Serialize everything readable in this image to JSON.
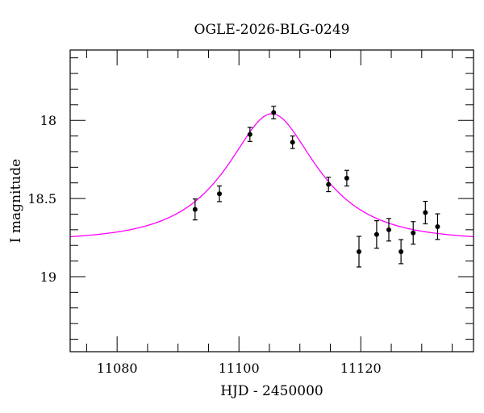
{
  "chart_data": {
    "type": "scatter",
    "title": "OGLE-2026-BLG-0249",
    "xlabel": "HJD - 2450000",
    "ylabel": "I magnitude",
    "xlim": [
      11072.3,
      11138.5
    ],
    "ylim": [
      17.55,
      19.48
    ],
    "y_inverted": true,
    "grid": false,
    "x_ticks": [
      11080,
      11100,
      11120
    ],
    "x_minor_step": 5,
    "y_ticks": [
      18,
      18.5,
      19
    ],
    "y_tick_labels": [
      "18",
      "18.5",
      "19"
    ],
    "y_minor_step": 0.1,
    "points": [
      {
        "x": 11092.8,
        "y": 18.57,
        "err": 0.067
      },
      {
        "x": 11096.8,
        "y": 18.47,
        "err": 0.05
      },
      {
        "x": 11101.8,
        "y": 18.09,
        "err": 0.045
      },
      {
        "x": 11105.7,
        "y": 17.95,
        "err": 0.04
      },
      {
        "x": 11108.8,
        "y": 18.14,
        "err": 0.04
      },
      {
        "x": 11114.7,
        "y": 18.41,
        "err": 0.046
      },
      {
        "x": 11117.7,
        "y": 18.37,
        "err": 0.05
      },
      {
        "x": 11119.7,
        "y": 18.84,
        "err": 0.098
      },
      {
        "x": 11122.6,
        "y": 18.73,
        "err": 0.088
      },
      {
        "x": 11124.6,
        "y": 18.7,
        "err": 0.072
      },
      {
        "x": 11126.6,
        "y": 18.84,
        "err": 0.077
      },
      {
        "x": 11128.6,
        "y": 18.72,
        "err": 0.072
      },
      {
        "x": 11130.6,
        "y": 18.59,
        "err": 0.072
      },
      {
        "x": 11132.6,
        "y": 18.68,
        "err": 0.082
      }
    ],
    "model": {
      "t0": 11105.4,
      "tE": 12.5,
      "u0": 0.52,
      "baseline": 18.77
    },
    "colors": {
      "points": "#000000",
      "model": "#ff00ff"
    }
  }
}
